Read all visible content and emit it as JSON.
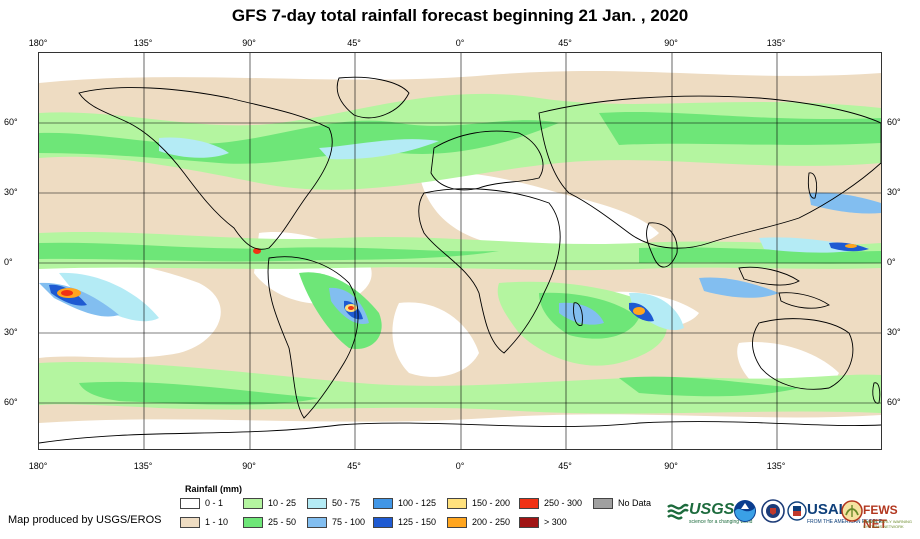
{
  "title": "GFS 7-day total rainfall forecast beginning 21 Jan. , 2020",
  "longitude_ticks": [
    "180°",
    "135°",
    "90°",
    "45°",
    "0°",
    "45°",
    "90°",
    "135°"
  ],
  "latitude_ticks": [
    "60°",
    "30°",
    "0°",
    "30°",
    "60°"
  ],
  "legend": {
    "title": "Rainfall (mm)",
    "items": [
      {
        "label": "0 - 1",
        "color": "#ffffff"
      },
      {
        "label": "1 - 10",
        "color": "#eedcc2"
      },
      {
        "label": "10 - 25",
        "color": "#b4f5a0"
      },
      {
        "label": "25 - 50",
        "color": "#6ee678"
      },
      {
        "label": "50 - 75",
        "color": "#b4ebf5"
      },
      {
        "label": "75 - 100",
        "color": "#82bef0"
      },
      {
        "label": "100 - 125",
        "color": "#4196e6"
      },
      {
        "label": "125 - 150",
        "color": "#1e5ad2"
      },
      {
        "label": "150 - 200",
        "color": "#ffe17d"
      },
      {
        "label": "200 - 250",
        "color": "#ffa51e"
      },
      {
        "label": "250 - 300",
        "color": "#f03214"
      },
      {
        "label": "> 300",
        "color": "#a01414"
      },
      {
        "label": "No Data",
        "color": "#a0a0a0"
      }
    ]
  },
  "credit": "Map produced by USGS/EROS",
  "logos": {
    "usgs": "USGS",
    "usgs_tagline": "science for a changing world",
    "noaa": "noaa-logo",
    "dhs": "dhs-seal",
    "usaid": "USAID",
    "usaid_tagline": "FROM THE AMERICAN PEOPLE",
    "fews": "FEWS NET",
    "fews_tagline": "FAMINE EARLY WARNING SYSTEMS NETWORK"
  }
}
